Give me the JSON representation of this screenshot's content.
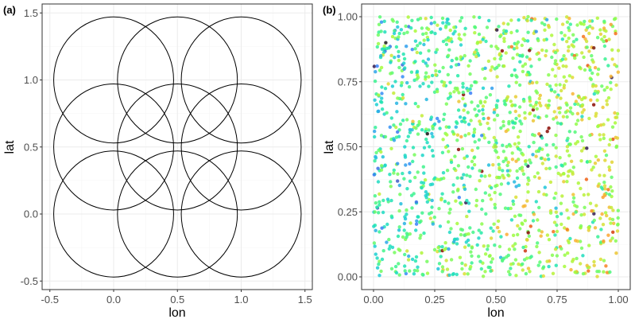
{
  "chart_data": [
    {
      "panel": "(a)",
      "type": "scatter",
      "geometry": "circles",
      "xlabel": "lon",
      "ylabel": "lat",
      "xlim": [
        -0.55,
        1.57
      ],
      "ylim": [
        -0.56,
        1.57
      ],
      "xticks": [
        -0.5,
        0.0,
        0.5,
        1.0,
        1.5
      ],
      "xtick_labels": [
        "-0.5",
        "0.0",
        "0.5",
        "1.0",
        "1.5"
      ],
      "yticks": [
        -0.5,
        0.0,
        0.5,
        1.0,
        1.5
      ],
      "ytick_labels": [
        "-0.5",
        "0.0",
        "0.5",
        "1.0",
        "1.5"
      ],
      "grid": true,
      "circle_radius": 0.47,
      "circles": [
        {
          "x": 0.0,
          "y": 0.0
        },
        {
          "x": 0.5,
          "y": 0.0
        },
        {
          "x": 1.0,
          "y": 0.0
        },
        {
          "x": 0.0,
          "y": 0.5
        },
        {
          "x": 0.5,
          "y": 0.5
        },
        {
          "x": 1.0,
          "y": 0.5
        },
        {
          "x": 0.0,
          "y": 1.0
        },
        {
          "x": 0.5,
          "y": 1.0
        },
        {
          "x": 1.0,
          "y": 1.0
        }
      ],
      "stroke_color": "#000000"
    },
    {
      "panel": "(b)",
      "type": "scatter",
      "xlabel": "lon",
      "ylabel": "lat",
      "xlim": [
        -0.05,
        1.05
      ],
      "ylim": [
        -0.05,
        1.05
      ],
      "xticks": [
        0.0,
        0.25,
        0.5,
        0.75,
        1.0
      ],
      "xtick_labels": [
        "0.00",
        "0.25",
        "0.50",
        "0.75",
        "1.00"
      ],
      "yticks": [
        0.0,
        0.25,
        0.5,
        0.75,
        1.0
      ],
      "ytick_labels": [
        "0.00",
        "0.25",
        "0.50",
        "0.75",
        "1.00"
      ],
      "grid": true,
      "point_count": 1500,
      "point_distribution": "uniform random on [0,1]x[0,1]",
      "color_scale": "turbo/jet (blue→cyan→green→yellow→orange→red), trending warmer with increasing lon",
      "point_radius_px": 2.2,
      "point_opacity": 0.85,
      "sample_points": [
        {
          "x": 0.05,
          "y": 0.9,
          "color": "#1a1a1a"
        },
        {
          "x": 0.03,
          "y": 0.85,
          "color": "#2fb8d8"
        },
        {
          "x": 0.22,
          "y": 0.55,
          "color": "#111111"
        },
        {
          "x": 0.62,
          "y": 0.1,
          "color": "#cc3311"
        },
        {
          "x": 0.97,
          "y": 0.97,
          "color": "#f0a030"
        },
        {
          "x": 0.9,
          "y": 0.88,
          "color": "#7a1a0a"
        },
        {
          "x": 0.5,
          "y": 0.5,
          "color": "#a8e040"
        }
      ]
    }
  ],
  "panels": {
    "a": {
      "tag": "(a)",
      "xlabel": "lon",
      "ylabel": "lat"
    },
    "b": {
      "tag": "(b)",
      "xlabel": "lon",
      "ylabel": "lat"
    }
  },
  "colors": {
    "panel_border": "#333333",
    "grid_major": "#ebebeb",
    "grid_minor": "#f5f5f5",
    "tick_text": "#4d4d4d"
  }
}
